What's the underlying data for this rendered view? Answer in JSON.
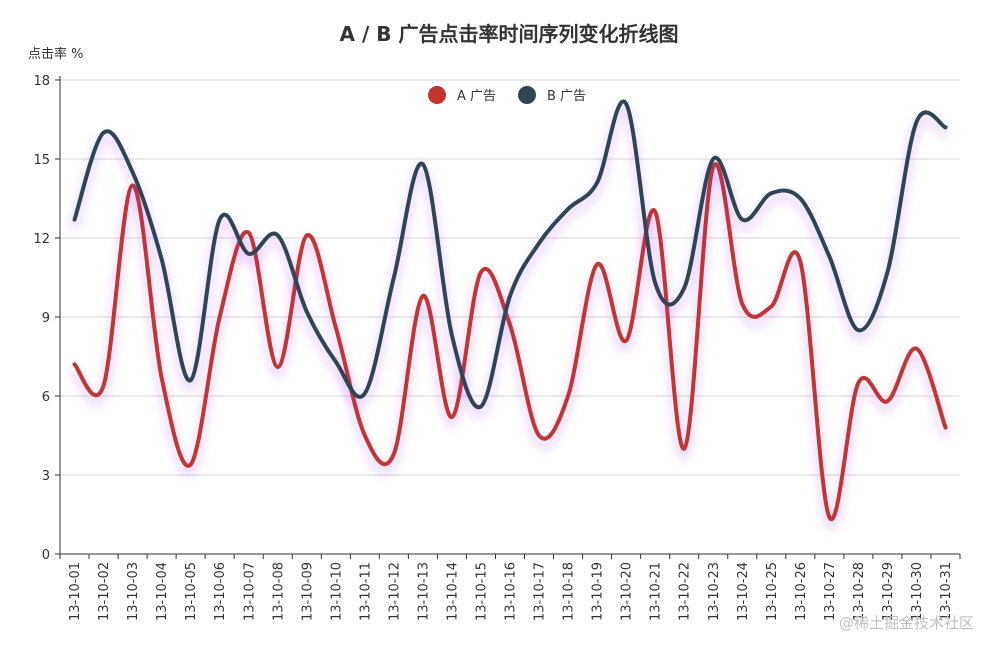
{
  "chart_data": {
    "type": "line",
    "title": "A / B 广告点击率时间序列变化折线图",
    "ylabel": "点击率 %",
    "xlabel": "",
    "ylim": [
      0,
      18
    ],
    "yticks": [
      0,
      3,
      6,
      9,
      12,
      15,
      18
    ],
    "grid": true,
    "legend_position": "top-center",
    "smooth": true,
    "categories": [
      "13-10-01",
      "13-10-02",
      "13-10-03",
      "13-10-04",
      "13-10-05",
      "13-10-06",
      "13-10-07",
      "13-10-08",
      "13-10-09",
      "13-10-10",
      "13-10-11",
      "13-10-12",
      "13-10-13",
      "13-10-14",
      "13-10-15",
      "13-10-16",
      "13-10-17",
      "13-10-18",
      "13-10-19",
      "13-10-20",
      "13-10-21",
      "13-10-22",
      "13-10-23",
      "13-10-24",
      "13-10-25",
      "13-10-26",
      "13-10-27",
      "13-10-28",
      "13-10-29",
      "13-10-30",
      "13-10-31"
    ],
    "series": [
      {
        "name": "A 广告",
        "color": "#c23531",
        "values": [
          7.2,
          6.4,
          14.0,
          6.7,
          3.4,
          9.0,
          12.2,
          7.1,
          12.1,
          8.6,
          4.5,
          3.8,
          9.8,
          5.2,
          10.7,
          8.7,
          4.5,
          6.0,
          11.0,
          8.1,
          13.0,
          4.0,
          14.7,
          9.5,
          9.4,
          11.1,
          1.4,
          6.5,
          5.8,
          7.8,
          4.8
        ]
      },
      {
        "name": "B 广告",
        "color": "#2f4554",
        "values": [
          12.7,
          16.0,
          14.5,
          11.2,
          6.6,
          12.7,
          11.4,
          12.1,
          9.2,
          7.3,
          6.1,
          10.5,
          14.8,
          8.3,
          5.6,
          9.8,
          11.8,
          13.1,
          14.1,
          17.1,
          10.3,
          10.1,
          15.0,
          12.7,
          13.7,
          13.5,
          11.3,
          8.5,
          10.7,
          16.4,
          16.2
        ]
      }
    ]
  },
  "watermark": "@稀土掘金技术社区"
}
